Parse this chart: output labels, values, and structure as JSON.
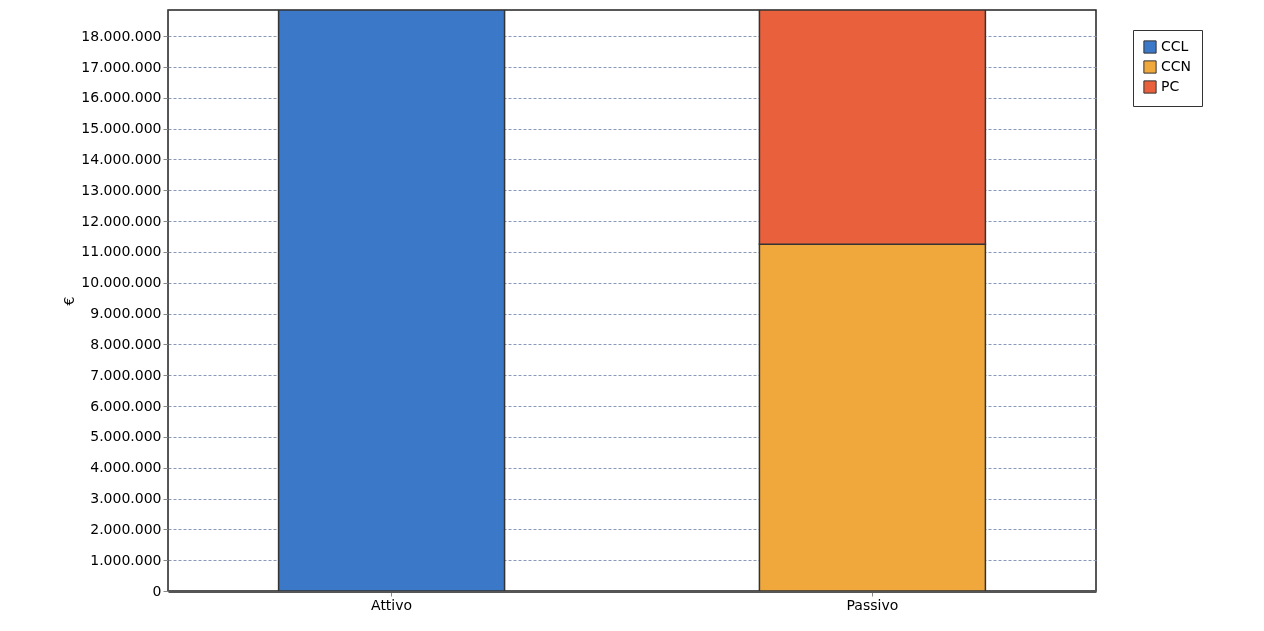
{
  "chart_data": {
    "type": "bar",
    "stacked": true,
    "ylabel": "€",
    "categories": [
      "Attivo",
      "Passivo"
    ],
    "series": [
      {
        "name": "CCL",
        "color": "#3c78c8",
        "values": [
          18850000,
          null
        ]
      },
      {
        "name": "CCN",
        "color": "#f0a83c",
        "values": [
          null,
          11250000
        ]
      },
      {
        "name": "PC",
        "color": "#e8603c",
        "values": [
          null,
          7600000
        ]
      }
    ],
    "ylim": [
      0,
      18850000
    ],
    "yticks": [
      {
        "value": 0,
        "label": "0"
      },
      {
        "value": 1000000,
        "label": "1.000.000"
      },
      {
        "value": 2000000,
        "label": "2.000.000"
      },
      {
        "value": 3000000,
        "label": "3.000.000"
      },
      {
        "value": 4000000,
        "label": "4.000.000"
      },
      {
        "value": 5000000,
        "label": "5.000.000"
      },
      {
        "value": 6000000,
        "label": "6.000.000"
      },
      {
        "value": 7000000,
        "label": "7.000.000"
      },
      {
        "value": 8000000,
        "label": "8.000.000"
      },
      {
        "value": 9000000,
        "label": "9.000.000"
      },
      {
        "value": 10000000,
        "label": "10.000.000"
      },
      {
        "value": 11000000,
        "label": "11.000.000"
      },
      {
        "value": 12000000,
        "label": "12.000.000"
      },
      {
        "value": 13000000,
        "label": "13.000.000"
      },
      {
        "value": 14000000,
        "label": "14.000.000"
      },
      {
        "value": 15000000,
        "label": "15.000.000"
      },
      {
        "value": 16000000,
        "label": "16.000.000"
      },
      {
        "value": 17000000,
        "label": "17.000.000"
      },
      {
        "value": 18000000,
        "label": "18.000.000"
      }
    ],
    "grid": "y",
    "legend": "top right"
  }
}
